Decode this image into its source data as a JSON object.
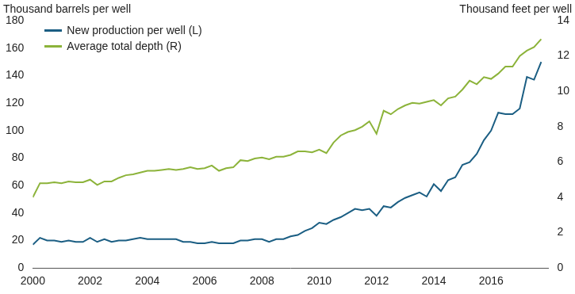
{
  "chart_data": {
    "type": "line",
    "y_label": "Thousand barrels per well",
    "y2_label": "Thousand feet per well",
    "x": [
      2000,
      2000.25,
      2000.5,
      2000.75,
      2001,
      2001.25,
      2001.5,
      2001.75,
      2002,
      2002.25,
      2002.5,
      2002.75,
      2003,
      2003.25,
      2003.5,
      2003.75,
      2004,
      2004.25,
      2004.5,
      2004.75,
      2005,
      2005.25,
      2005.5,
      2005.75,
      2006,
      2006.25,
      2006.5,
      2006.75,
      2007,
      2007.25,
      2007.5,
      2007.75,
      2008,
      2008.25,
      2008.5,
      2008.75,
      2009,
      2009.25,
      2009.5,
      2009.75,
      2010,
      2010.25,
      2010.5,
      2010.75,
      2011,
      2011.25,
      2011.5,
      2011.75,
      2012,
      2012.25,
      2012.5,
      2012.75,
      2013,
      2013.25,
      2013.5,
      2013.75,
      2014,
      2014.25,
      2014.5,
      2014.75,
      2015,
      2015.25,
      2015.5,
      2015.75,
      2016,
      2016.25,
      2016.5,
      2016.75,
      2017,
      2017.25,
      2017.5,
      2017.75
    ],
    "xlim": [
      2000,
      2018
    ],
    "xticks": [
      2000,
      2002,
      2004,
      2006,
      2008,
      2010,
      2012,
      2014,
      2016
    ],
    "ylim": [
      0,
      180
    ],
    "yticks": [
      0,
      20,
      40,
      60,
      80,
      100,
      120,
      140,
      160,
      180
    ],
    "y2lim": [
      0,
      14
    ],
    "y2ticks": [
      0,
      2,
      4,
      6,
      8,
      10,
      12,
      14
    ],
    "grid": false,
    "legend": "upper left",
    "series": [
      {
        "name": "New production per well (L)",
        "color": "#1b5e83",
        "values": [
          17,
          22,
          20,
          20,
          19,
          20,
          19,
          19,
          22,
          19,
          21,
          19,
          20,
          20,
          21,
          22,
          21,
          21,
          21,
          21,
          21,
          19,
          19,
          18,
          18,
          19,
          18,
          18,
          18,
          20,
          20,
          21,
          21,
          19,
          21,
          21,
          23,
          24,
          27,
          29,
          33,
          32,
          35,
          37,
          40,
          43,
          42,
          43,
          38,
          45,
          44,
          48,
          51,
          53,
          55,
          52,
          61,
          56,
          64,
          66,
          75,
          77,
          83,
          93,
          100,
          113,
          112,
          112,
          116,
          139,
          137,
          150
        ]
      },
      {
        "name": "Average total depth (R)",
        "color": "#8cb33a",
        "axis": "y2",
        "values": [
          4.0,
          4.8,
          4.8,
          4.85,
          4.8,
          4.9,
          4.85,
          4.85,
          5.0,
          4.7,
          4.9,
          4.9,
          5.1,
          5.25,
          5.3,
          5.4,
          5.5,
          5.5,
          5.55,
          5.6,
          5.55,
          5.6,
          5.7,
          5.6,
          5.65,
          5.8,
          5.5,
          5.65,
          5.7,
          6.1,
          6.05,
          6.2,
          6.25,
          6.15,
          6.3,
          6.3,
          6.4,
          6.6,
          6.6,
          6.55,
          6.7,
          6.5,
          7.1,
          7.5,
          7.7,
          7.8,
          8.0,
          8.3,
          7.6,
          8.9,
          8.7,
          9.0,
          9.2,
          9.35,
          9.3,
          9.4,
          9.5,
          9.2,
          9.6,
          9.7,
          10.1,
          10.6,
          10.4,
          10.8,
          10.7,
          11.0,
          11.4,
          11.4,
          12.0,
          12.3,
          12.5,
          12.95
        ]
      }
    ]
  }
}
